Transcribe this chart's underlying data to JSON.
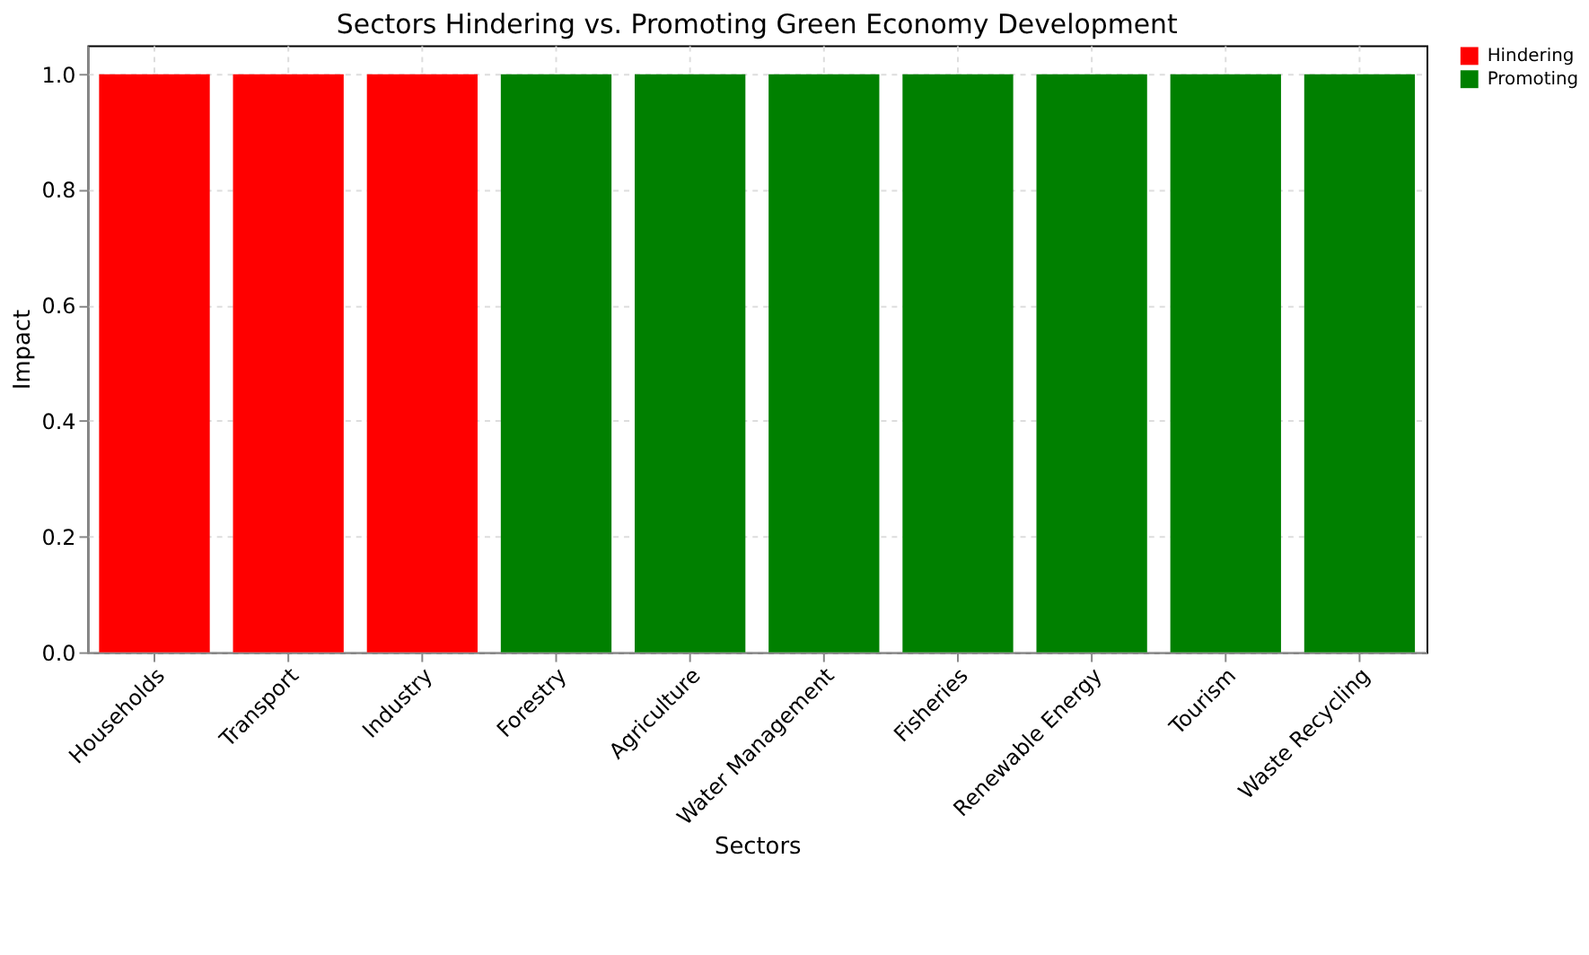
{
  "chart_data": {
    "type": "bar",
    "title": "Sectors Hindering vs. Promoting Green Economy Development",
    "xlabel": "Sectors",
    "ylabel": "Impact",
    "categories": [
      "Households",
      "Transport",
      "Industry",
      "Forestry",
      "Agriculture",
      "Water Management",
      "Fisheries",
      "Renewable Energy",
      "Tourism",
      "Waste Recycling"
    ],
    "series": [
      {
        "name": "Hindering",
        "color": "#ff0000",
        "values": [
          1,
          1,
          1,
          null,
          null,
          null,
          null,
          null,
          null,
          null
        ]
      },
      {
        "name": "Promoting",
        "color": "#008000",
        "values": [
          null,
          null,
          null,
          1,
          1,
          1,
          1,
          1,
          1,
          1
        ]
      }
    ],
    "ylim": [
      0,
      1.05
    ],
    "yticks": [
      {
        "value": 0,
        "label": "0.0"
      },
      {
        "value": 0.2,
        "label": "0.2"
      },
      {
        "value": 0.4,
        "label": "0.4"
      },
      {
        "value": 0.6,
        "label": "0.6"
      },
      {
        "value": 0.8,
        "label": "0.8"
      },
      {
        "value": 1,
        "label": "1.0"
      }
    ],
    "grid": true,
    "legend": "top right"
  }
}
